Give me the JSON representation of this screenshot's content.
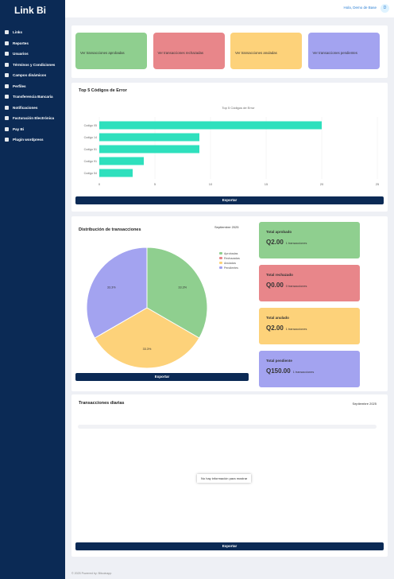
{
  "sidebar": {
    "logo": "Link Bi",
    "menu": [
      "Links",
      "Reportes",
      "Usuarios",
      "Términos y Condiciones",
      "Campos dinámicos",
      "Perfiles",
      "Transferencia Bancaria",
      "Notificaciones",
      "Facturación Electrónica",
      "Pay Bi",
      "Plugin wordpress"
    ]
  },
  "topbar": {
    "greeting": "Hola, Demo de Base",
    "avatar": "D"
  },
  "quick_cards": [
    "Ver transacciones aprobadas",
    "Ver transacciones rechazadas",
    "Ver transacciones anuladas",
    "Ver transacciones pendientes"
  ],
  "error_chart": {
    "type": "bar",
    "title": "Top 5 Códigos de Error",
    "chart_title": "Top 5 Códigos de Error",
    "categories": [
      "Codigo 05",
      "Codigo 14",
      "Codigo 51",
      "Codigo 91",
      "Codigo 54"
    ],
    "values": [
      20,
      9,
      9,
      4,
      3
    ],
    "color": "#2ee0bd",
    "xlim": [
      0,
      25
    ],
    "xticks": [
      0,
      5,
      10,
      15,
      20,
      25
    ],
    "export": "Exportar"
  },
  "distribution": {
    "type": "pie",
    "title": "Distribución de transacciones",
    "period": "Septiembre 2025",
    "categories": [
      "Aprobadas",
      "Rechazadas",
      "Anuladas",
      "Pendientes"
    ],
    "values": [
      33.3,
      0,
      33.3,
      33.3
    ],
    "value_labels": [
      "33.3%",
      null,
      "33.3%",
      "33.3%"
    ],
    "colors": [
      "#8fcf8f",
      "#e8868a",
      "#fdd27a",
      "#a3a3f0"
    ],
    "export": "Exportar"
  },
  "totals": [
    {
      "label": "Total aprobado",
      "amount": "Q2.00",
      "count": "1 transacciones"
    },
    {
      "label": "Total rechazado",
      "amount": "Q0.00",
      "count": "0 transacciones"
    },
    {
      "label": "Total anulado",
      "amount": "Q2.00",
      "count": "1 transacciones"
    },
    {
      "label": "Total pendiente",
      "amount": "Q150.00",
      "count": "1 transacciones"
    }
  ],
  "daily": {
    "title": "Transacciones diarias",
    "period": "Septiembre 2025",
    "empty": "No hay información para mostrar",
    "export": "Exportar"
  },
  "footer": "© 2025 Powered by: Bitcoinapp"
}
